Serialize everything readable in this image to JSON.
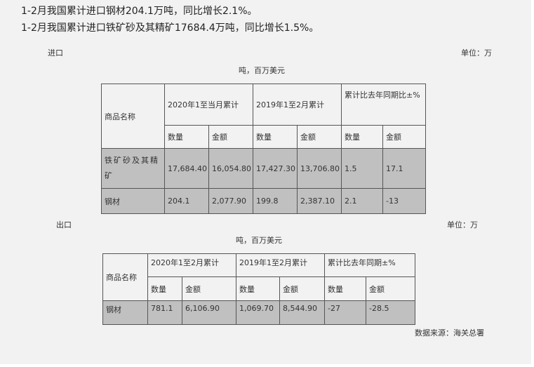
{
  "headlines": [
    "1-2月我国累计进口钢材204.1万吨，同比增长2.1%。",
    "1-2月我国累计进口铁矿砂及其精矿17684.4万吨，同比增长1.5%。"
  ],
  "import": {
    "label": "进口",
    "unit_a": "单位：万",
    "unit_b": "吨，百万美元",
    "headers": {
      "name": "商品名称",
      "g1": "2020年1至当月累计",
      "g2": "2019年1至2月累计",
      "g3": "累计比去年同期比±%",
      "qty": "数量",
      "amt": "金额"
    },
    "rows": [
      [
        "铁矿砂及其精矿",
        "17,684.40",
        "16,054.80",
        "17,427.30",
        "13,706.80",
        "1.5",
        "17.1"
      ],
      [
        "钢材",
        "204.1",
        "2,077.90",
        "199.8",
        "2,387.10",
        "2.1",
        "-13"
      ]
    ]
  },
  "export": {
    "label": "出口",
    "unit_a": "单位：万",
    "unit_b": "吨，百万美元",
    "headers": {
      "name": "商品名称",
      "g1": "2020年1至2月累计",
      "g2": "2019年1至2月累计",
      "g3": "累计比去年同期±%",
      "qty": "数量",
      "amt": "金额"
    },
    "rows": [
      [
        "钢材",
        "781.1",
        "6,106.90",
        "1,069.70",
        "8,544.90",
        "-27",
        "-28.5"
      ]
    ]
  },
  "source": "数据来源：海关总署"
}
